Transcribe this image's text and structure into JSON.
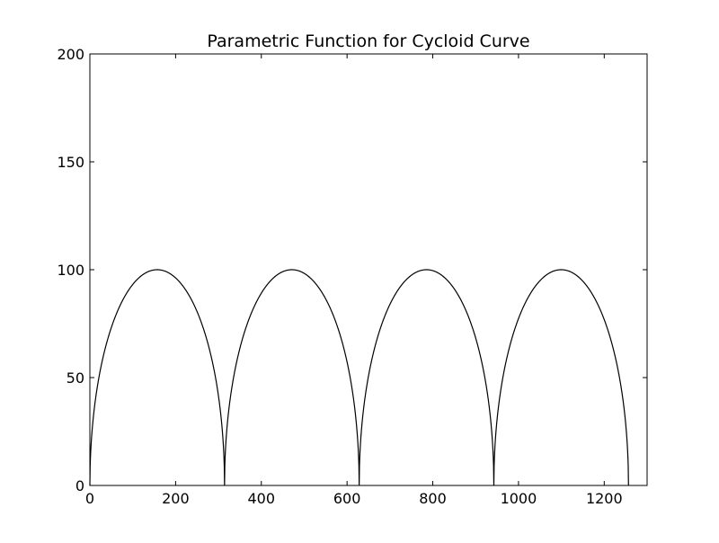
{
  "chart_data": {
    "type": "line",
    "title": "Parametric Function for Cycloid Curve",
    "xlabel": "",
    "ylabel": "",
    "xlim": [
      0,
      1300
    ],
    "ylim": [
      0,
      200
    ],
    "x_ticks": [
      0,
      200,
      400,
      600,
      800,
      1000,
      1200
    ],
    "x_tick_labels": [
      "0",
      "200",
      "400",
      "600",
      "800",
      "1000",
      "1200"
    ],
    "y_ticks": [
      0,
      50,
      100,
      150,
      200
    ],
    "y_tick_labels": [
      "0",
      "50",
      "100",
      "150",
      "200"
    ],
    "grid": false,
    "legend": "none",
    "series": [
      {
        "color": "#000000",
        "curve": "cycloid",
        "radius": 50,
        "arches": 4,
        "x_start": 0,
        "x_end": 1256.6,
        "peak_y": 100,
        "arch_peaks_x": [
          157.1,
          471.2,
          785.4,
          1099.6
        ],
        "cusps_x": [
          0,
          314.2,
          628.3,
          942.5,
          1256.6
        ]
      }
    ]
  }
}
